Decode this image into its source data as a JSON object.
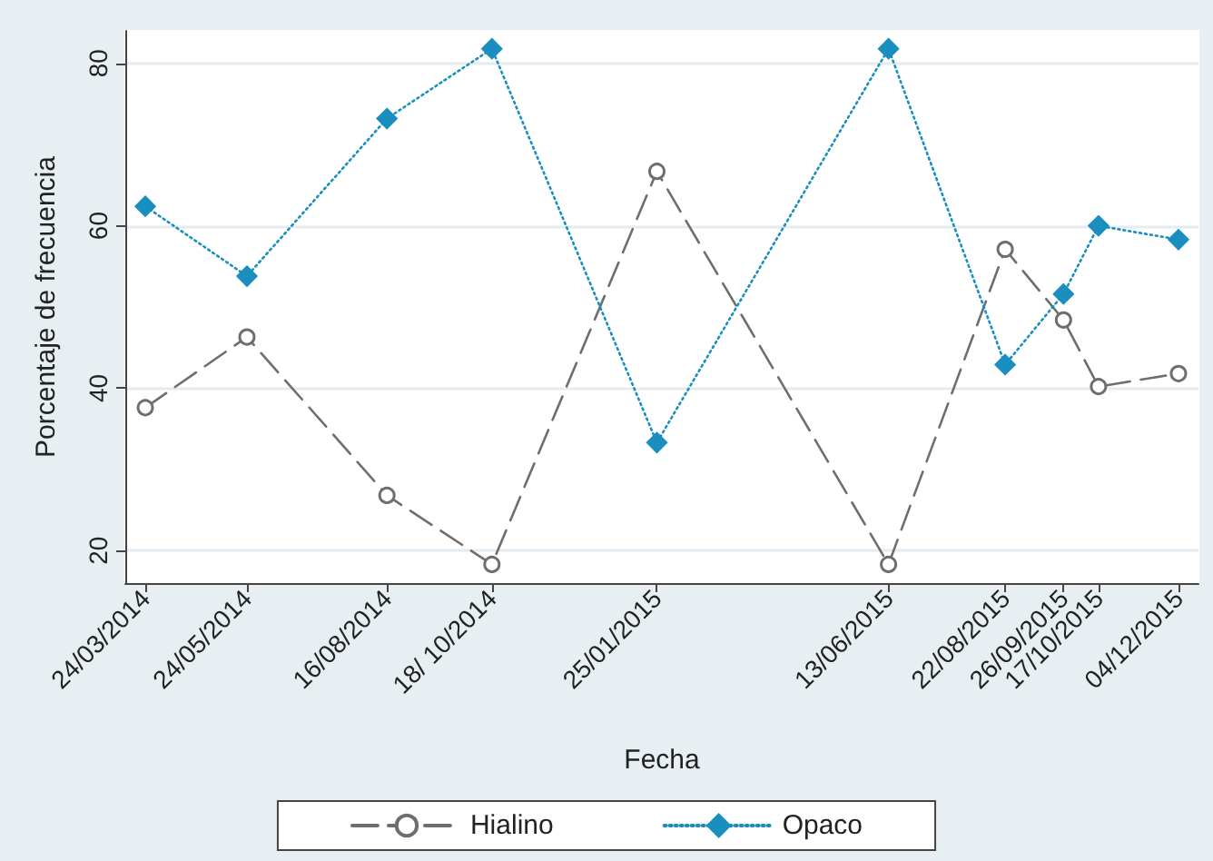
{
  "chart_data": {
    "type": "line",
    "xlabel": "Fecha",
    "ylabel": "Porcentaje de frecuencia",
    "x": [
      "2014-03-24",
      "2014-05-24",
      "2014-08-16",
      "2014-10-18",
      "2015-01-25",
      "2015-06-13",
      "2015-08-22",
      "2015-09-26",
      "2015-10-17",
      "2015-12-04"
    ],
    "xlim": [
      "2014-03-12",
      "2015-12-16"
    ],
    "xticks": [
      {
        "value": "2014-03-24",
        "label": "24/03/2014"
      },
      {
        "value": "2014-05-24",
        "label": "24/05/2014"
      },
      {
        "value": "2014-08-16",
        "label": "16/08/2014"
      },
      {
        "value": "2014-10-18",
        "label": "18/ 10/2014"
      },
      {
        "value": "2015-01-25",
        "label": "25/01/2015"
      },
      {
        "value": "2015-06-13",
        "label": "13/06/2015"
      },
      {
        "value": "2015-08-22",
        "label": "22/08/2015"
      },
      {
        "value": "2015-09-26",
        "label": "26/09/2015"
      },
      {
        "value": "2015-10-17",
        "label": "17/10/2015"
      },
      {
        "value": "2015-12-04",
        "label": "04/12/2015"
      }
    ],
    "ylim": [
      16,
      84
    ],
    "yticks": [
      20,
      40,
      60,
      80
    ],
    "grid": "y",
    "legend": "bottom",
    "series": [
      {
        "name": "Hialino",
        "color": "#6e6e6e",
        "marker": "circle",
        "line_style": "dashed",
        "values": [
          37.6,
          46.3,
          26.8,
          18.3,
          66.7,
          18.3,
          57.1,
          48.4,
          40.2,
          41.8
        ]
      },
      {
        "name": "Opaco",
        "color": "#1a8fbf",
        "marker": "diamond",
        "line_style": "dotted",
        "values": [
          62.4,
          53.8,
          73.2,
          81.8,
          33.3,
          81.8,
          42.9,
          51.6,
          60.0,
          58.3
        ]
      }
    ]
  }
}
